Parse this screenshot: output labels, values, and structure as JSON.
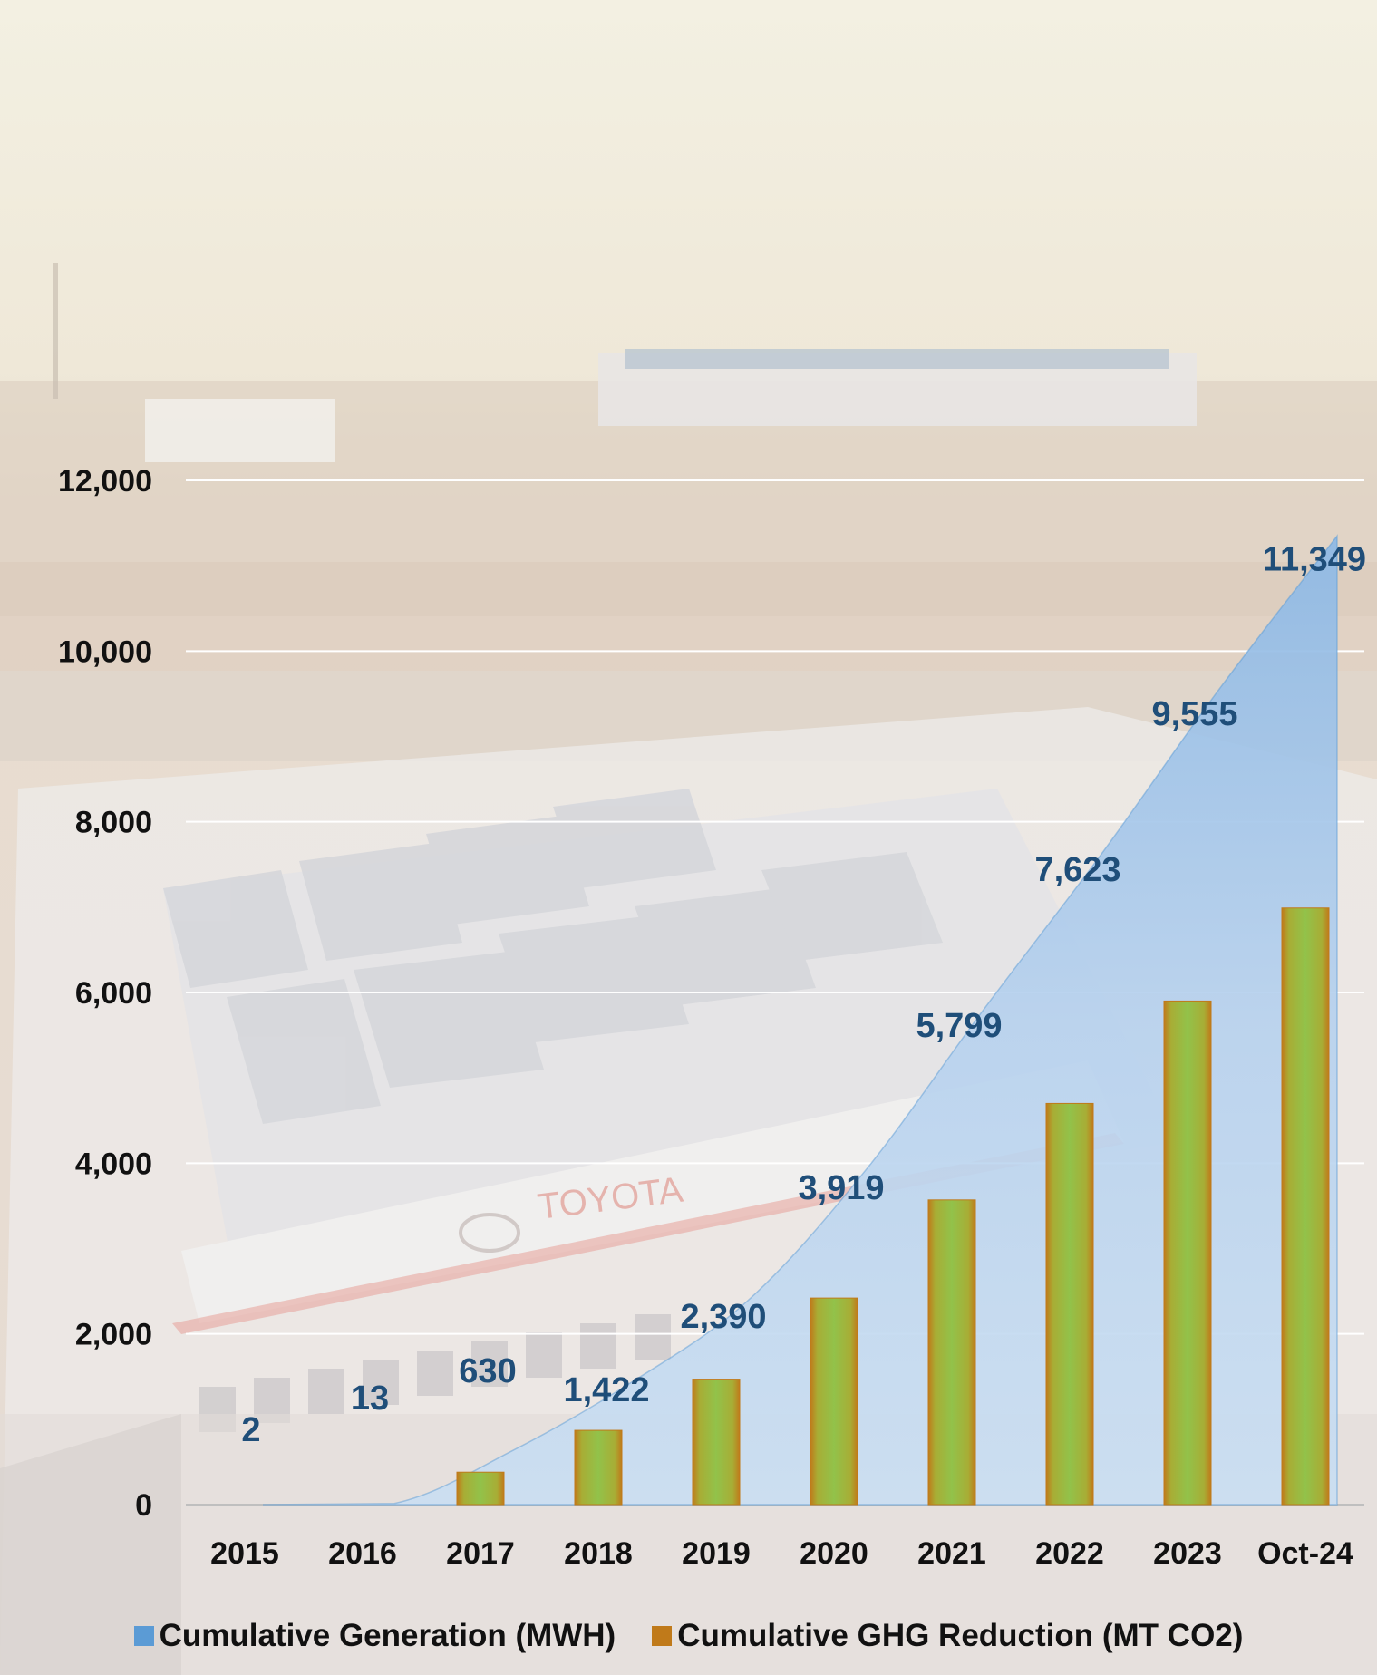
{
  "colors": {
    "area_fill_top": "#8fb9e4",
    "area_fill_bottom": "#c9def2",
    "area_edge": "#5b9bd5",
    "bar_center": "#92c24a",
    "bar_edge": "#c07a1a",
    "data_label": "#1f4e79",
    "legend_generation": "#5b9bd5",
    "legend_ghg": "#c07a1a",
    "grid": "#ffffff"
  },
  "legend": {
    "generation": "Cumulative Generation (MWH)",
    "ghg": "Cumulative GHG Reduction (MT CO2)"
  },
  "chart_data": {
    "type": "area",
    "categories": [
      "2015",
      "2016",
      "2017",
      "2018",
      "2019",
      "2020",
      "2021",
      "2022",
      "2023",
      "Oct-24"
    ],
    "ylim": [
      0,
      12000
    ],
    "yticks": [
      0,
      2000,
      4000,
      6000,
      8000,
      10000,
      12000
    ],
    "ytick_labels": [
      "0",
      "2,000",
      "4,000",
      "6,000",
      "8,000",
      "10,000",
      "12,000"
    ],
    "grid": true,
    "legend_position": "bottom",
    "series": [
      {
        "name": "Cumulative Generation (MWH)",
        "type": "area",
        "values": [
          2,
          13,
          630,
          1422,
          2390,
          3919,
          5799,
          7623,
          9555,
          11349
        ],
        "labels": [
          "2",
          "13",
          "630",
          "1,422",
          "2,390",
          "3,919",
          "5,799",
          "7,623",
          "9,555",
          "11,349"
        ]
      },
      {
        "name": "Cumulative GHG Reduction (MT CO2)",
        "type": "bar",
        "values": [
          1,
          8,
          380,
          870,
          1470,
          2420,
          3570,
          4700,
          5900,
          6990
        ]
      }
    ]
  }
}
